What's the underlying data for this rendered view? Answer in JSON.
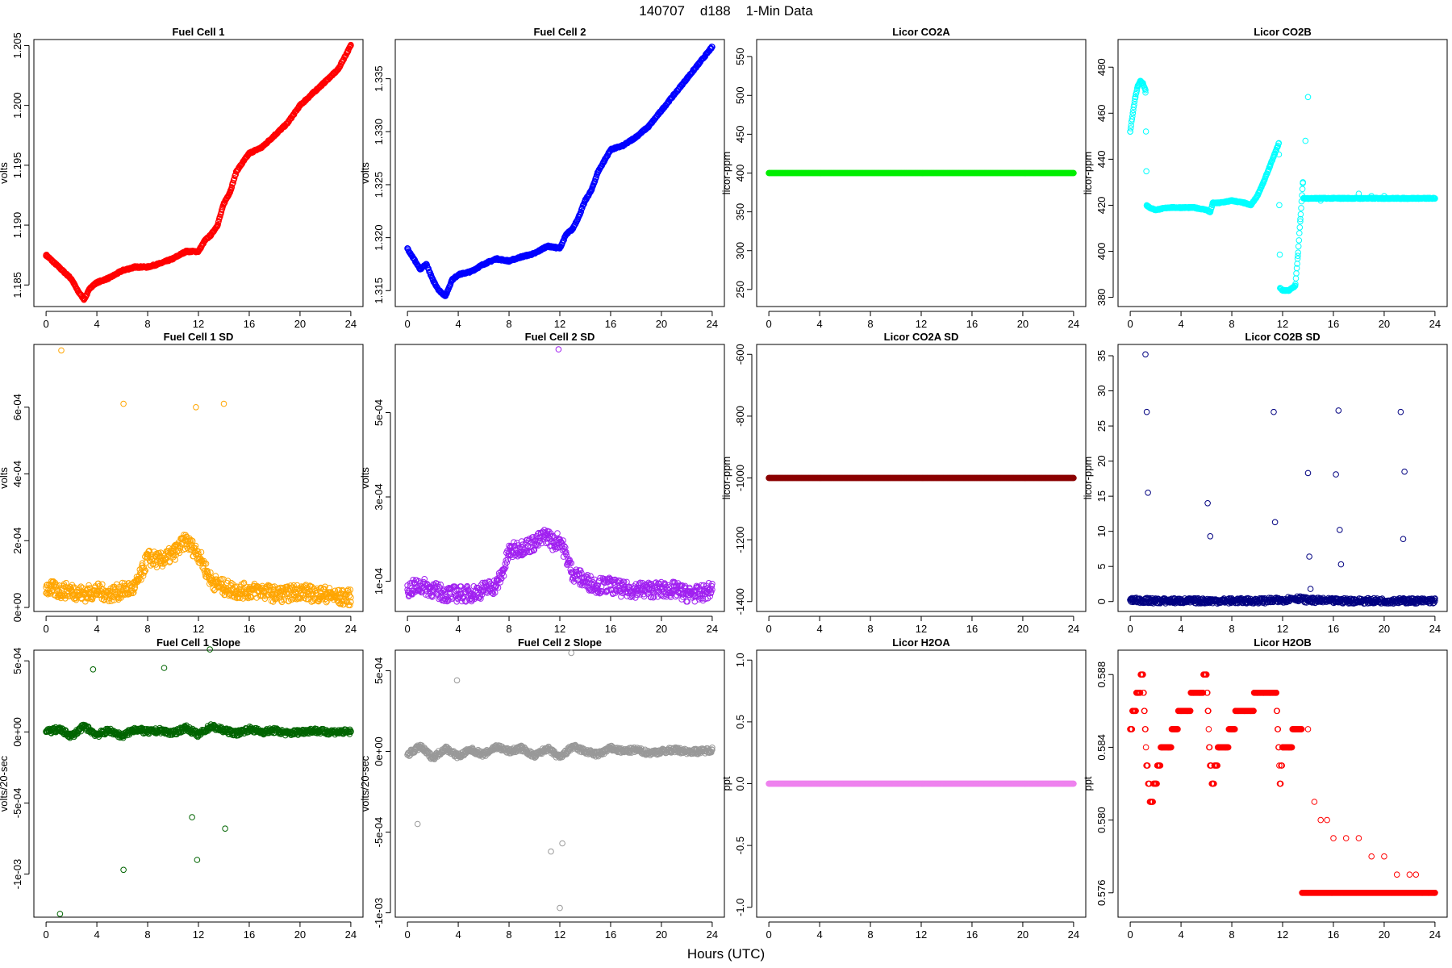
{
  "figure": {
    "title": "140707    d188    1-Min Data",
    "xlabel": "Hours (UTC)"
  },
  "chart_data": [
    {
      "type": "scatter",
      "title": "Fuel Cell 1",
      "ylabel": "volts",
      "xlim": [
        -0.96,
        24.96
      ],
      "ylim": [
        1.1832,
        1.2055
      ],
      "xticks": [
        0,
        4,
        8,
        12,
        16,
        20,
        24
      ],
      "yticks": [
        1.185,
        1.19,
        1.195,
        1.2,
        1.205
      ],
      "ytick_labels": [
        "1.185",
        "1.190",
        "1.195",
        "1.200",
        "1.205"
      ],
      "color": "#ff0000",
      "series": [
        {
          "x": [
            0,
            0.5,
            1,
            1.5,
            2,
            2.5,
            3,
            3.5,
            4,
            5,
            6,
            7,
            8,
            9,
            10,
            11,
            12,
            12.5,
            13,
            13.5,
            14,
            14.5,
            15,
            16,
            17,
            18,
            19,
            20,
            21,
            22,
            23,
            24
          ],
          "y": [
            1.1875,
            1.187,
            1.1865,
            1.186,
            1.1855,
            1.1845,
            1.1838,
            1.1848,
            1.1852,
            1.1856,
            1.1862,
            1.1865,
            1.1865,
            1.1868,
            1.1872,
            1.1878,
            1.1878,
            1.1887,
            1.1892,
            1.19,
            1.1918,
            1.1928,
            1.1945,
            1.196,
            1.1965,
            1.1975,
            1.1985,
            1.2,
            1.201,
            1.202,
            1.203,
            1.205
          ]
        }
      ]
    },
    {
      "type": "scatter",
      "title": "Fuel Cell 2",
      "ylabel": "volts",
      "xlim": [
        -0.96,
        24.96
      ],
      "ylim": [
        1.3135,
        1.3387
      ],
      "xticks": [
        0,
        4,
        8,
        12,
        16,
        20,
        24
      ],
      "yticks": [
        1.315,
        1.32,
        1.325,
        1.33,
        1.335
      ],
      "ytick_labels": [
        "1.315",
        "1.320",
        "1.325",
        "1.330",
        "1.335"
      ],
      "color": "#0000ff",
      "series": [
        {
          "x": [
            0,
            0.5,
            1,
            1.5,
            2,
            2.5,
            3,
            3.5,
            4,
            5,
            6,
            7,
            8,
            9,
            10,
            11,
            12,
            12.5,
            13,
            13.5,
            14,
            14.5,
            15,
            16,
            17,
            18,
            19,
            20,
            21,
            22,
            23,
            24
          ],
          "y": [
            1.319,
            1.318,
            1.317,
            1.3175,
            1.316,
            1.315,
            1.3145,
            1.316,
            1.3165,
            1.3168,
            1.3175,
            1.318,
            1.3178,
            1.3182,
            1.3185,
            1.3192,
            1.319,
            1.3203,
            1.3208,
            1.322,
            1.3235,
            1.3245,
            1.3262,
            1.3283,
            1.3287,
            1.3295,
            1.3305,
            1.332,
            1.3335,
            1.335,
            1.3365,
            1.338
          ]
        }
      ]
    },
    {
      "type": "scatter",
      "title": "Licor CO2A",
      "ylabel": "licor-ppm",
      "xlim": [
        -0.96,
        24.96
      ],
      "ylim": [
        228,
        572
      ],
      "xticks": [
        0,
        4,
        8,
        12,
        16,
        20,
        24
      ],
      "yticks": [
        250,
        300,
        350,
        400,
        450,
        500,
        550
      ],
      "ytick_labels": [
        "250",
        "300",
        "350",
        "400",
        "450",
        "500",
        "550"
      ],
      "color": "#00ee00",
      "series": [
        {
          "x": [
            0,
            24
          ],
          "y": [
            400,
            400
          ]
        }
      ]
    },
    {
      "type": "scatter",
      "title": "Licor CO2B",
      "ylabel": "licor-ppm",
      "xlim": [
        -0.96,
        24.96
      ],
      "ylim": [
        376,
        492
      ],
      "xticks": [
        0,
        4,
        8,
        12,
        16,
        20,
        24
      ],
      "yticks": [
        380,
        400,
        420,
        440,
        460,
        480
      ],
      "ytick_labels": [
        "380",
        "400",
        "420",
        "440",
        "460",
        "480"
      ],
      "color": "#00ffff",
      "series": [
        {
          "x": [
            0,
            0.2,
            0.4,
            0.6,
            0.8,
            1,
            1.2,
            1.3,
            1.5,
            2,
            3,
            4,
            5,
            6,
            6.3,
            6.5,
            7,
            8,
            9,
            9.5,
            10,
            10.5,
            11,
            11.5,
            11.7,
            11.8,
            12,
            12.5,
            13,
            13.2,
            13.4,
            13.6,
            13.8,
            14,
            14.2,
            15,
            16,
            17,
            18,
            19,
            20,
            21,
            22,
            23,
            24
          ],
          "y": [
            452,
            460,
            467,
            472,
            474,
            473,
            470,
            420,
            419,
            418,
            419,
            419,
            419,
            418,
            417,
            421,
            421,
            422,
            421,
            420,
            424,
            430,
            437,
            444,
            447,
            384,
            383,
            383,
            385,
            398,
            414,
            430,
            448,
            467,
            423,
            422,
            423,
            423,
            425,
            424,
            424,
            423,
            423,
            423,
            423
          ]
        }
      ]
    },
    {
      "type": "scatter",
      "title": "Fuel Cell 1 SD",
      "ylabel": "volts",
      "xlim": [
        -0.96,
        24.96
      ],
      "ylim": [
        -1.2e-05,
        0.000788
      ],
      "xticks": [
        0,
        4,
        8,
        12,
        16,
        20,
        24
      ],
      "yticks": [
        0,
        0.0002,
        0.0004,
        0.0006
      ],
      "ytick_labels": [
        "0e+00",
        "2e-04",
        "4e-04",
        "6e-04"
      ],
      "color": "#ffa500",
      "series": [
        {
          "x": [
            0,
            1,
            2,
            3,
            4,
            5,
            6,
            7,
            7.5,
            8,
            9,
            10,
            11,
            11.5,
            12,
            13,
            14,
            15,
            16,
            17,
            18,
            19,
            20,
            21,
            22,
            23,
            24,
            1.2,
            6.1,
            11.8,
            14
          ],
          "y": [
            6e-05,
            5e-05,
            5e-05,
            4e-05,
            5e-05,
            4e-05,
            5e-05,
            6e-05,
            0.0001,
            0.00015,
            0.00014,
            0.00016,
            0.0002,
            0.00018,
            0.00016,
            8e-05,
            6e-05,
            5e-05,
            5e-05,
            5e-05,
            4e-05,
            4e-05,
            5e-05,
            4e-05,
            4e-05,
            3e-05,
            3e-05,
            0.00077,
            0.00061,
            0.0006,
            0.00061
          ]
        }
      ]
    },
    {
      "type": "scatter",
      "title": "Fuel Cell 2 SD",
      "ylabel": "volts",
      "xlim": [
        -0.96,
        24.96
      ],
      "ylim": [
        2.83e-05,
        0.0006617
      ],
      "xticks": [
        0,
        4,
        8,
        12,
        16,
        20,
        24
      ],
      "yticks": [
        0.0001,
        0.0003,
        0.0005
      ],
      "ytick_labels": [
        "1e-04",
        "3e-04",
        "5e-04"
      ],
      "color": "#a020f0",
      "series": [
        {
          "x": [
            0,
            1,
            2,
            3,
            4,
            5,
            6,
            7,
            7.5,
            8,
            9,
            10,
            11,
            11.5,
            12,
            13,
            14,
            15,
            16,
            17,
            18,
            19,
            20,
            21,
            22,
            23,
            24,
            11.9
          ],
          "y": [
            8e-05,
            9e-05,
            8e-05,
            7e-05,
            7e-05,
            7e-05,
            8e-05,
            9e-05,
            0.00012,
            0.00017,
            0.00018,
            0.00019,
            0.00021,
            0.00019,
            0.0002,
            0.00012,
            0.0001,
            9e-05,
            9e-05,
            8e-05,
            8e-05,
            8e-05,
            8e-05,
            8e-05,
            7e-05,
            7e-05,
            8e-05,
            0.00065
          ]
        }
      ]
    },
    {
      "type": "scatter",
      "title": "Licor CO2A SD",
      "ylabel": "licor-ppm",
      "xlim": [
        -0.96,
        24.96
      ],
      "ylim": [
        -1432,
        -568
      ],
      "xticks": [
        0,
        4,
        8,
        12,
        16,
        20,
        24
      ],
      "yticks": [
        -1400,
        -1200,
        -1000,
        -800,
        -600
      ],
      "ytick_labels": [
        "-1400",
        "-1200",
        "-1000",
        "-800",
        "-600"
      ],
      "color": "#8b0000",
      "series": [
        {
          "x": [
            0,
            24
          ],
          "y": [
            -1000,
            -1000
          ]
        }
      ]
    },
    {
      "type": "scatter",
      "title": "Licor CO2B SD",
      "ylabel": "licor-ppm",
      "xlim": [
        -0.96,
        24.96
      ],
      "ylim": [
        -1.41,
        36.61
      ],
      "xticks": [
        0,
        4,
        8,
        12,
        16,
        20,
        24
      ],
      "yticks": [
        0,
        5,
        10,
        15,
        20,
        25,
        30,
        35
      ],
      "ytick_labels": [
        "0",
        "5",
        "10",
        "15",
        "20",
        "25",
        "30",
        "35"
      ],
      "color": "#000080",
      "series": [
        {
          "x": [
            0,
            2,
            4,
            6,
            8,
            10,
            12,
            13,
            14,
            16,
            18,
            20,
            22,
            24,
            1.2,
            1.3,
            1.4,
            6.1,
            6.3,
            11.3,
            11.4,
            14,
            14.1,
            14.2,
            16.2,
            16.4,
            16.5,
            16.6,
            21.3,
            21.5,
            21.6
          ],
          "y": [
            0.2,
            0.1,
            0.1,
            0.1,
            0.1,
            0.1,
            0.2,
            0.5,
            0.2,
            0.1,
            0.1,
            0.1,
            0.1,
            0.1,
            35.2,
            27,
            15.5,
            14,
            9.3,
            27,
            11.3,
            18.3,
            6.4,
            1.8,
            18.1,
            27.2,
            10.2,
            5.3,
            27,
            8.9,
            18.5
          ]
        }
      ]
    },
    {
      "type": "scatter",
      "title": "Fuel Cell 1 Slope",
      "ylabel": "volts/20-sec",
      "xlim": [
        -0.96,
        24.96
      ],
      "ylim": [
        -0.001303,
        0.000575
      ],
      "xticks": [
        0,
        4,
        8,
        12,
        16,
        20,
        24
      ],
      "yticks": [
        -0.001,
        -0.0005,
        0,
        0.0005
      ],
      "ytick_labels": [
        "-1e-03",
        "-5e-04",
        "0e+00",
        "5e-04"
      ],
      "color": "#006400",
      "series": [
        {
          "x": [
            0,
            1,
            2,
            3,
            4,
            5,
            6,
            7,
            8,
            9,
            10,
            11,
            12,
            13,
            14,
            15,
            16,
            17,
            18,
            19,
            20,
            21,
            22,
            23,
            24,
            1.1,
            6.1,
            11.9,
            12.9,
            3.7,
            9.3,
            14.1,
            11.5
          ],
          "y": [
            0,
            2e-05,
            -3e-05,
            4e-05,
            -2e-05,
            1e-05,
            -3e-05,
            2e-05,
            0,
            1e-05,
            -1e-05,
            3e-05,
            -2e-05,
            4e-05,
            1e-05,
            -1e-05,
            2e-05,
            0,
            1e-05,
            -1e-05,
            0,
            1e-05,
            0,
            0,
            0,
            -0.00128,
            -0.00097,
            -0.0009,
            0.00058,
            0.00044,
            0.00045,
            -0.00068,
            -0.0006
          ]
        }
      ]
    },
    {
      "type": "scatter",
      "title": "Fuel Cell 2 Slope",
      "ylabel": "volts/20-sec",
      "xlim": [
        -0.96,
        24.96
      ],
      "ylim": [
        -0.001027,
        0.000627
      ],
      "xticks": [
        0,
        4,
        8,
        12,
        16,
        20,
        24
      ],
      "yticks": [
        -0.001,
        -0.0005,
        0,
        0.0005
      ],
      "ytick_labels": [
        "-1e-03",
        "-5e-04",
        "0e+00",
        "5e-04"
      ],
      "color": "#999999",
      "series": [
        {
          "x": [
            0,
            1,
            2,
            3,
            4,
            5,
            6,
            7,
            8,
            9,
            10,
            11,
            12,
            13,
            14,
            15,
            16,
            17,
            18,
            19,
            20,
            21,
            22,
            23,
            24,
            12,
            12.9,
            3.9,
            11.3,
            12.2,
            0.8
          ],
          "y": [
            -2e-05,
            3e-05,
            -4e-05,
            2e-05,
            -3e-05,
            1e-05,
            -2e-05,
            3e-05,
            0,
            2e-05,
            -3e-05,
            2e-05,
            -4e-05,
            3e-05,
            0,
            -2e-05,
            2e-05,
            0,
            1e-05,
            -1e-05,
            0,
            1e-05,
            0,
            0,
            1e-05,
            -0.00097,
            0.00061,
            0.00044,
            -0.00062,
            -0.00057,
            -0.00045
          ]
        }
      ]
    },
    {
      "type": "scatter",
      "title": "Licor H2OA",
      "ylabel": "ppt",
      "xlim": [
        -0.96,
        24.96
      ],
      "ylim": [
        -1.08,
        1.08
      ],
      "xticks": [
        0,
        4,
        8,
        12,
        16,
        20,
        24
      ],
      "yticks": [
        -1,
        -0.5,
        0,
        0.5,
        1
      ],
      "ytick_labels": [
        "-1.0",
        "-0.5",
        "0.0",
        "0.5",
        "1.0"
      ],
      "color": "#ee82ee",
      "series": [
        {
          "x": [
            0,
            24
          ],
          "y": [
            0,
            0
          ]
        }
      ]
    },
    {
      "type": "scatter",
      "title": "Licor H2OB",
      "ylabel": "ppt",
      "xlim": [
        -0.96,
        24.96
      ],
      "ylim": [
        0.57466,
        0.58934
      ],
      "xticks": [
        0,
        4,
        8,
        12,
        16,
        20,
        24
      ],
      "yticks": [
        0.576,
        0.58,
        0.584,
        0.588
      ],
      "ytick_labels": [
        "0.576",
        "0.580",
        "0.584",
        "0.588"
      ],
      "color": "#ff0000",
      "series": [
        {
          "x": [
            0,
            0.3,
            0.6,
            1,
            1.3,
            1.6,
            2,
            2.5,
            3,
            3.5,
            4,
            4.5,
            5,
            5.5,
            6,
            6.3,
            6.5,
            7,
            7.5,
            8,
            8.5,
            9,
            9.5,
            10,
            10.5,
            11,
            11.5,
            11.8,
            12,
            12.5,
            13,
            13.5,
            14,
            14.5,
            15,
            15.5,
            16,
            17,
            18,
            19,
            20,
            21,
            22,
            22.5,
            23,
            23.5,
            24
          ],
          "y": [
            0.585,
            0.586,
            0.587,
            0.588,
            0.583,
            0.581,
            0.582,
            0.584,
            0.584,
            0.585,
            0.586,
            0.586,
            0.587,
            0.587,
            0.588,
            0.583,
            0.582,
            0.584,
            0.584,
            0.585,
            0.586,
            0.586,
            0.586,
            0.587,
            0.587,
            0.587,
            0.587,
            0.582,
            0.584,
            0.584,
            0.585,
            0.585,
            0.585,
            0.581,
            0.58,
            0.58,
            0.579,
            0.579,
            0.579,
            0.578,
            0.578,
            0.577,
            0.577,
            0.577,
            0.576,
            0.576,
            0.576
          ]
        }
      ]
    }
  ]
}
